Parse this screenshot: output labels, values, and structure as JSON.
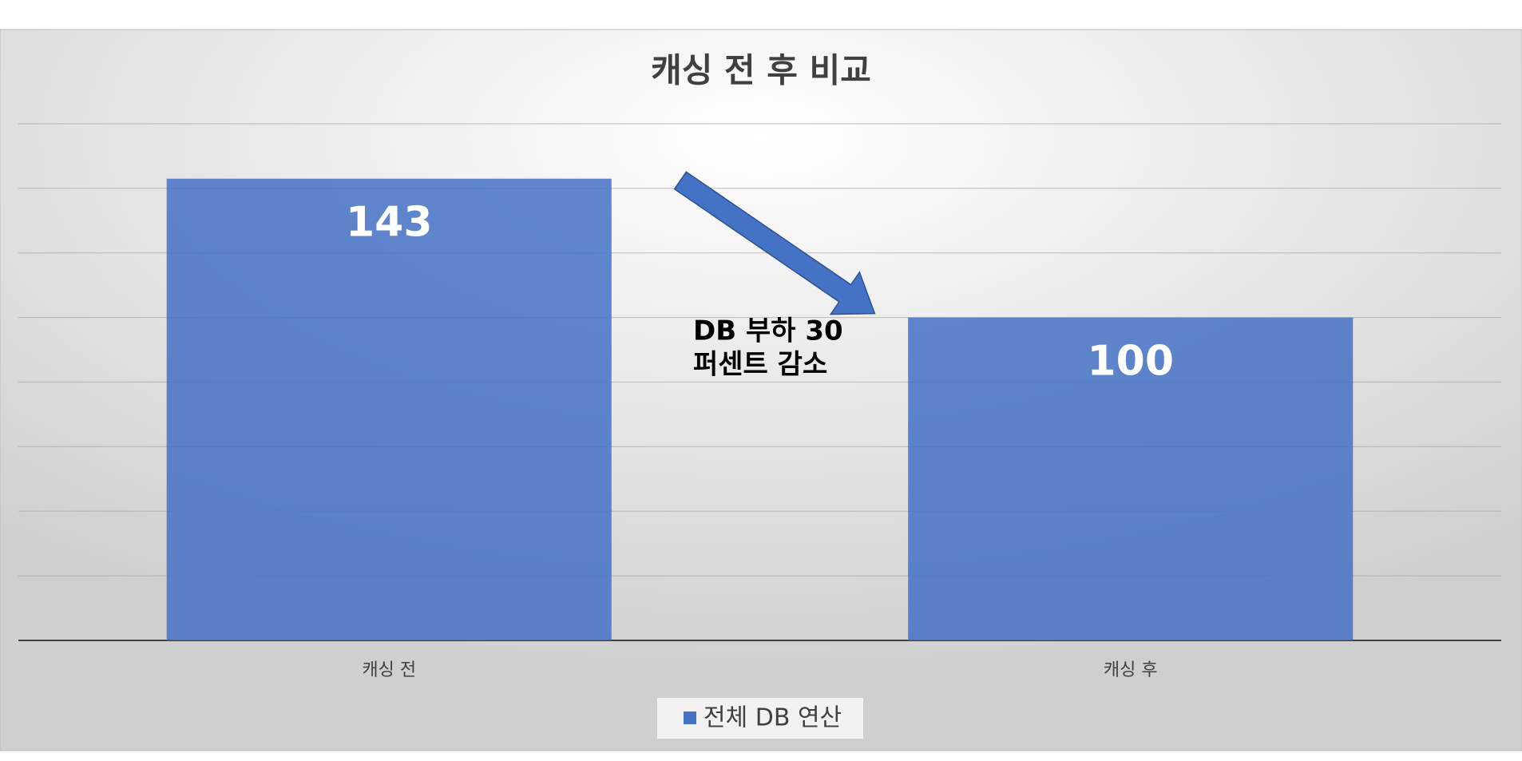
{
  "chart_data": {
    "type": "bar",
    "title": "캐싱 전 후 비교",
    "categories": [
      "캐싱 전",
      "캐싱 후"
    ],
    "series": [
      {
        "name": "전체 DB 연산",
        "color": "#4472c4",
        "values": [
          143,
          100
        ]
      }
    ],
    "ylim": [
      0,
      160
    ],
    "yticks": [
      0,
      20,
      40,
      60,
      80,
      100,
      120,
      140,
      160
    ],
    "grid": true,
    "legend": "bottom",
    "annotation": [
      "DB 부하 30",
      "퍼센트 감소"
    ]
  }
}
